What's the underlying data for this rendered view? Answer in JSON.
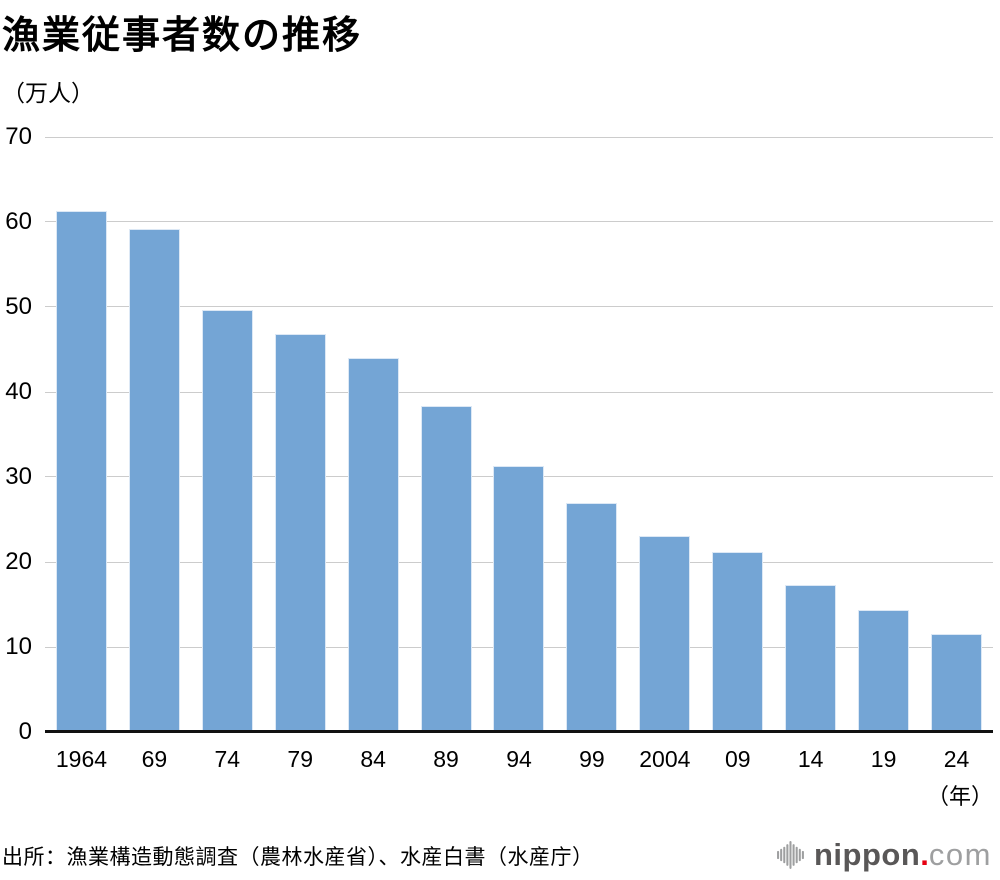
{
  "title": "漁業従事者数の推移",
  "source": {
    "text": "出所：漁業構造動態調査（農林水産省）、水産白書（水産庁）"
  },
  "logo": {
    "brand": "nippon",
    "dot": ".",
    "domain": "com",
    "icon": "soundwave-icon"
  },
  "colors": {
    "bar": "#74A5D5",
    "gridline": "#CCCCCC",
    "axis": "#111111",
    "text": "#000000",
    "logo_dark": "#595757",
    "logo_light": "#9E9FA0",
    "logo_dot": "#E60012"
  },
  "chart_data": {
    "type": "bar",
    "title": "漁業従事者数の推移",
    "y_unit": "（万人）",
    "x_unit": "（年）",
    "xlabel": "年",
    "ylabel": "漁業従事者数（万人）",
    "categories": [
      "1964",
      "69",
      "74",
      "79",
      "84",
      "89",
      "94",
      "99",
      "2004",
      "09",
      "14",
      "19",
      "24"
    ],
    "values": [
      61.3,
      59.2,
      49.7,
      46.8,
      44.0,
      38.3,
      31.3,
      27.0,
      23.1,
      21.2,
      17.3,
      14.4,
      11.5
    ],
    "ylim": [
      0,
      70
    ],
    "yticks": [
      70,
      60,
      50,
      40,
      30,
      20,
      10,
      0
    ],
    "grid": true,
    "legend": false
  }
}
